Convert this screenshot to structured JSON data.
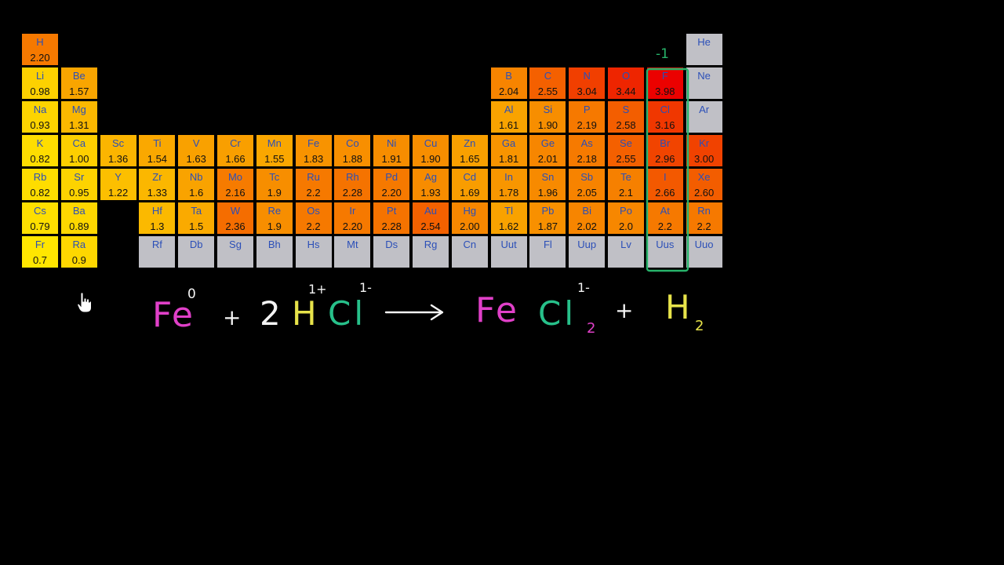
{
  "colors": {
    "none": "#c0c0c6",
    "symbol": "#2b4fb8",
    "value": "#111111",
    "fe": "#e040c8",
    "white": "#f4f4f4",
    "h": "#e7e34a",
    "cl": "#27c08a",
    "box": "#27b36a"
  },
  "elements": [
    {
      "s": "H",
      "v": "2.20",
      "r": 1,
      "c": 1
    },
    {
      "s": "He",
      "v": "",
      "r": 1,
      "c": 18
    },
    {
      "s": "Li",
      "v": "0.98",
      "r": 2,
      "c": 1
    },
    {
      "s": "Be",
      "v": "1.57",
      "r": 2,
      "c": 2
    },
    {
      "s": "B",
      "v": "2.04",
      "r": 2,
      "c": 13
    },
    {
      "s": "C",
      "v": "2.55",
      "r": 2,
      "c": 14
    },
    {
      "s": "N",
      "v": "3.04",
      "r": 2,
      "c": 15
    },
    {
      "s": "O",
      "v": "3.44",
      "r": 2,
      "c": 16
    },
    {
      "s": "F",
      "v": "3.98",
      "r": 2,
      "c": 17
    },
    {
      "s": "Ne",
      "v": "",
      "r": 2,
      "c": 18
    },
    {
      "s": "Na",
      "v": "0.93",
      "r": 3,
      "c": 1
    },
    {
      "s": "Mg",
      "v": "1.31",
      "r": 3,
      "c": 2
    },
    {
      "s": "Al",
      "v": "1.61",
      "r": 3,
      "c": 13
    },
    {
      "s": "Si",
      "v": "1.90",
      "r": 3,
      "c": 14
    },
    {
      "s": "P",
      "v": "2.19",
      "r": 3,
      "c": 15
    },
    {
      "s": "S",
      "v": "2.58",
      "r": 3,
      "c": 16
    },
    {
      "s": "Cl",
      "v": "3.16",
      "r": 3,
      "c": 17
    },
    {
      "s": "Ar",
      "v": "",
      "r": 3,
      "c": 18
    },
    {
      "s": "K",
      "v": "0.82",
      "r": 4,
      "c": 1
    },
    {
      "s": "Ca",
      "v": "1.00",
      "r": 4,
      "c": 2
    },
    {
      "s": "Sc",
      "v": "1.36",
      "r": 4,
      "c": 3
    },
    {
      "s": "Ti",
      "v": "1.54",
      "r": 4,
      "c": 4
    },
    {
      "s": "V",
      "v": "1.63",
      "r": 4,
      "c": 5
    },
    {
      "s": "Cr",
      "v": "1.66",
      "r": 4,
      "c": 6
    },
    {
      "s": "Mn",
      "v": "1.55",
      "r": 4,
      "c": 7
    },
    {
      "s": "Fe",
      "v": "1.83",
      "r": 4,
      "c": 8
    },
    {
      "s": "Co",
      "v": "1.88",
      "r": 4,
      "c": 9
    },
    {
      "s": "Ni",
      "v": "1.91",
      "r": 4,
      "c": 10
    },
    {
      "s": "Cu",
      "v": "1.90",
      "r": 4,
      "c": 11
    },
    {
      "s": "Zn",
      "v": "1.65",
      "r": 4,
      "c": 12
    },
    {
      "s": "Ga",
      "v": "1.81",
      "r": 4,
      "c": 13
    },
    {
      "s": "Ge",
      "v": "2.01",
      "r": 4,
      "c": 14
    },
    {
      "s": "As",
      "v": "2.18",
      "r": 4,
      "c": 15
    },
    {
      "s": "Se",
      "v": "2.55",
      "r": 4,
      "c": 16
    },
    {
      "s": "Br",
      "v": "2.96",
      "r": 4,
      "c": 17
    },
    {
      "s": "Kr",
      "v": "3.00",
      "r": 4,
      "c": 18
    },
    {
      "s": "Rb",
      "v": "0.82",
      "r": 5,
      "c": 1
    },
    {
      "s": "Sr",
      "v": "0.95",
      "r": 5,
      "c": 2
    },
    {
      "s": "Y",
      "v": "1.22",
      "r": 5,
      "c": 3
    },
    {
      "s": "Zr",
      "v": "1.33",
      "r": 5,
      "c": 4
    },
    {
      "s": "Nb",
      "v": "1.6",
      "r": 5,
      "c": 5
    },
    {
      "s": "Mo",
      "v": "2.16",
      "r": 5,
      "c": 6
    },
    {
      "s": "Tc",
      "v": "1.9",
      "r": 5,
      "c": 7
    },
    {
      "s": "Ru",
      "v": "2.2",
      "r": 5,
      "c": 8
    },
    {
      "s": "Rh",
      "v": "2.28",
      "r": 5,
      "c": 9
    },
    {
      "s": "Pd",
      "v": "2.20",
      "r": 5,
      "c": 10
    },
    {
      "s": "Ag",
      "v": "1.93",
      "r": 5,
      "c": 11
    },
    {
      "s": "Cd",
      "v": "1.69",
      "r": 5,
      "c": 12
    },
    {
      "s": "In",
      "v": "1.78",
      "r": 5,
      "c": 13
    },
    {
      "s": "Sn",
      "v": "1.96",
      "r": 5,
      "c": 14
    },
    {
      "s": "Sb",
      "v": "2.05",
      "r": 5,
      "c": 15
    },
    {
      "s": "Te",
      "v": "2.1",
      "r": 5,
      "c": 16
    },
    {
      "s": "I",
      "v": "2.66",
      "r": 5,
      "c": 17
    },
    {
      "s": "Xe",
      "v": "2.60",
      "r": 5,
      "c": 18
    },
    {
      "s": "Cs",
      "v": "0.79",
      "r": 6,
      "c": 1
    },
    {
      "s": "Ba",
      "v": "0.89",
      "r": 6,
      "c": 2
    },
    {
      "s": "Hf",
      "v": "1.3",
      "r": 6,
      "c": 4
    },
    {
      "s": "Ta",
      "v": "1.5",
      "r": 6,
      "c": 5
    },
    {
      "s": "W",
      "v": "2.36",
      "r": 6,
      "c": 6
    },
    {
      "s": "Re",
      "v": "1.9",
      "r": 6,
      "c": 7
    },
    {
      "s": "Os",
      "v": "2.2",
      "r": 6,
      "c": 8
    },
    {
      "s": "Ir",
      "v": "2.20",
      "r": 6,
      "c": 9
    },
    {
      "s": "Pt",
      "v": "2.28",
      "r": 6,
      "c": 10
    },
    {
      "s": "Au",
      "v": "2.54",
      "r": 6,
      "c": 11
    },
    {
      "s": "Hg",
      "v": "2.00",
      "r": 6,
      "c": 12
    },
    {
      "s": "Tl",
      "v": "1.62",
      "r": 6,
      "c": 13
    },
    {
      "s": "Pb",
      "v": "1.87",
      "r": 6,
      "c": 14
    },
    {
      "s": "Bi",
      "v": "2.02",
      "r": 6,
      "c": 15
    },
    {
      "s": "Po",
      "v": "2.0",
      "r": 6,
      "c": 16
    },
    {
      "s": "At",
      "v": "2.2",
      "r": 6,
      "c": 17
    },
    {
      "s": "Rn",
      "v": "2.2",
      "r": 6,
      "c": 18
    },
    {
      "s": "Fr",
      "v": "0.7",
      "r": 7,
      "c": 1
    },
    {
      "s": "Ra",
      "v": "0.9",
      "r": 7,
      "c": 2
    },
    {
      "s": "Rf",
      "v": "",
      "r": 7,
      "c": 4
    },
    {
      "s": "Db",
      "v": "",
      "r": 7,
      "c": 5
    },
    {
      "s": "Sg",
      "v": "",
      "r": 7,
      "c": 6
    },
    {
      "s": "Bh",
      "v": "",
      "r": 7,
      "c": 7
    },
    {
      "s": "Hs",
      "v": "",
      "r": 7,
      "c": 8
    },
    {
      "s": "Mt",
      "v": "",
      "r": 7,
      "c": 9
    },
    {
      "s": "Ds",
      "v": "",
      "r": 7,
      "c": 10
    },
    {
      "s": "Rg",
      "v": "",
      "r": 7,
      "c": 11
    },
    {
      "s": "Cn",
      "v": "",
      "r": 7,
      "c": 12
    },
    {
      "s": "Uut",
      "v": "",
      "r": 7,
      "c": 13
    },
    {
      "s": "Fl",
      "v": "",
      "r": 7,
      "c": 14
    },
    {
      "s": "Uup",
      "v": "",
      "r": 7,
      "c": 15
    },
    {
      "s": "Lv",
      "v": "",
      "r": 7,
      "c": 16
    },
    {
      "s": "Uus",
      "v": "",
      "r": 7,
      "c": 17
    },
    {
      "s": "Uuo",
      "v": "",
      "r": 7,
      "c": 18
    }
  ],
  "annotation": {
    "group_charge": "-1"
  },
  "equation": {
    "fe": "Fe",
    "fe_charge": "0",
    "plus": "+",
    "coefficient": "2",
    "h": "H",
    "h_charge": "1+",
    "cl": "Cl",
    "cl_charge": "1-",
    "product_fe": "Fe",
    "product_cl": "Cl",
    "product_cl_sub": "2",
    "product_cl_charge": "1-",
    "h2": "H",
    "h2_sub": "2"
  },
  "cursor_icon": "hand-pointer-icon"
}
